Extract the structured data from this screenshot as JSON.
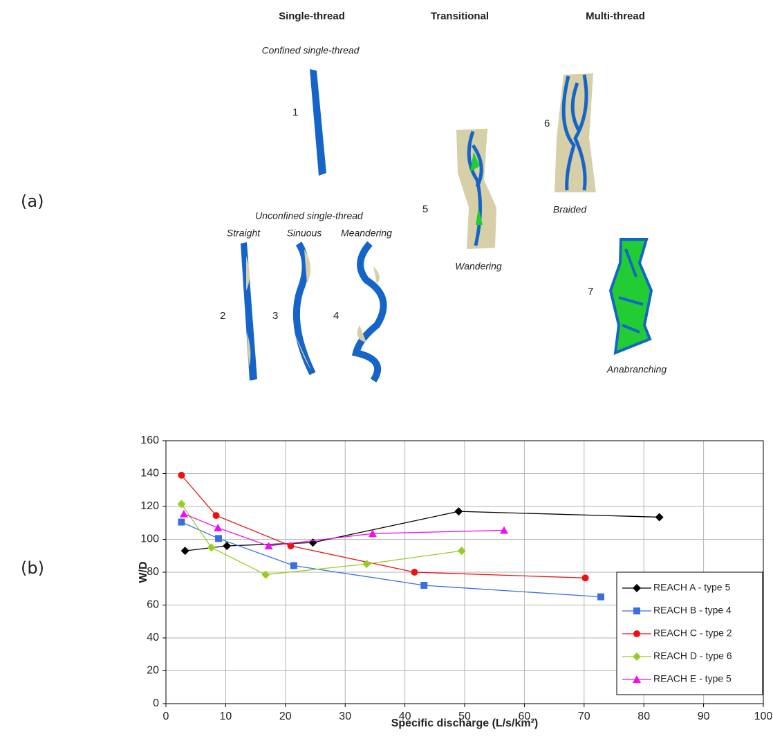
{
  "panel_labels": [
    "(a)",
    "(b)"
  ],
  "diagram": {
    "columns": [
      "Single-thread",
      "Transitional",
      "Multi-thread"
    ],
    "confined": "Confined single-thread",
    "unconfined": "Unconfined single-thread",
    "subtypes": [
      "Straight",
      "Sinuous",
      "Meandering"
    ],
    "numbers": [
      "1",
      "2",
      "3",
      "4",
      "5",
      "6",
      "7"
    ],
    "wandering": "Wandering",
    "braided": "Braided",
    "anabranching": "Anabranching"
  },
  "chart_data": {
    "type": "line",
    "x_label": "Specific discharge (L/s/km²)",
    "y_label": "W/D",
    "xlim": [
      0,
      100
    ],
    "xticks": [
      0,
      10,
      20,
      30,
      40,
      50,
      60,
      70,
      80,
      90,
      100
    ],
    "ylim": [
      0,
      160
    ],
    "yticks": [
      0,
      20,
      40,
      60,
      80,
      100,
      120,
      140,
      160
    ],
    "grid": true,
    "legend": "bottom-right",
    "series": [
      {
        "name": "REACH A - type 5",
        "color": "#000000",
        "marker": "diamond",
        "x": [
          3.2,
          10.2,
          24.6,
          49,
          82.6
        ],
        "values": [
          93,
          96,
          98,
          117,
          113.5
        ]
      },
      {
        "name": "REACH B - type 4",
        "color": "#3b6fe0",
        "marker": "square",
        "x": [
          2.6,
          8.8,
          21.4,
          43.2,
          72.8
        ],
        "values": [
          110.5,
          100.5,
          84,
          72,
          65
        ]
      },
      {
        "name": "REACH C - type 2",
        "color": "#ee1111",
        "marker": "circle",
        "x": [
          2.6,
          8.4,
          20.9,
          41.6,
          70.2
        ],
        "values": [
          139,
          114.5,
          96,
          80,
          76.5
        ]
      },
      {
        "name": "REACH D - type 6",
        "color": "#99cc22",
        "marker": "diamond",
        "x": [
          2.6,
          7.6,
          16.7,
          33.6,
          49.5
        ],
        "values": [
          121.5,
          95,
          78.5,
          85,
          93
        ]
      },
      {
        "name": "REACH E - type 5",
        "color": "#ee11ee",
        "marker": "triangle",
        "x": [
          3,
          8.7,
          17.2,
          34.6,
          56.6
        ],
        "values": [
          115.5,
          107,
          96,
          103.5,
          105.5
        ]
      }
    ]
  }
}
